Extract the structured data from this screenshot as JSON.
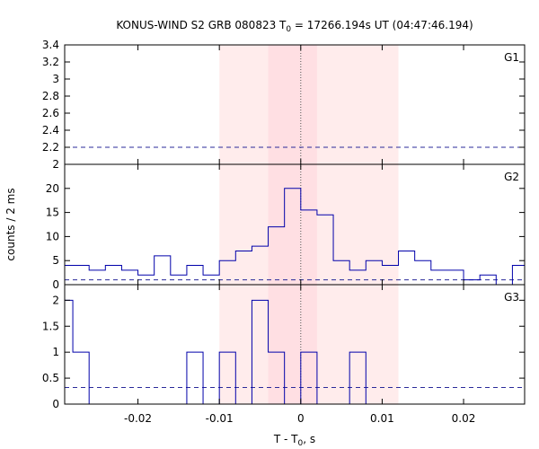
{
  "chart_data": {
    "type": "line",
    "title_main": "KONUS-WIND S2 GRB 080823 T",
    "title_sub": "0",
    "title_rest": " = 17266.194s UT (04:47:46.194)",
    "ylabel": "counts / 2 ms",
    "xlabel_main": "T - T",
    "xlabel_sub": "0",
    "xlabel_rest": ", s",
    "xlim": [
      -0.029,
      0.0275
    ],
    "x_ticks": [
      -0.02,
      -0.01,
      0,
      0.01,
      0.02
    ],
    "x_tick_labels": [
      "-0.02",
      "-0.01",
      "0",
      "0.01",
      "0.02"
    ],
    "bands": [
      {
        "x0": -0.01,
        "x1": 0.012,
        "color": "#ffecec"
      },
      {
        "x0": -0.004,
        "x1": 0.002,
        "color": "#ffdfe3"
      }
    ],
    "zero_line_color": "#555555",
    "line_color": "#0000aa",
    "background_color": "#2a2a9a",
    "panels": [
      {
        "name": "G1",
        "ylim": [
          2,
          3.4
        ],
        "y_ticks": [
          2,
          2.2,
          2.4,
          2.6,
          2.8,
          3,
          3.2,
          3.4
        ],
        "y_tick_labels": [
          "2",
          "2.2",
          "2.4",
          "2.6",
          "2.8",
          "3",
          "3.2",
          "3.4"
        ],
        "background": 2.2,
        "edges": [],
        "values": []
      },
      {
        "name": "G2",
        "ylim": [
          0,
          25
        ],
        "y_ticks": [
          0,
          5,
          10,
          15,
          20
        ],
        "y_tick_labels": [
          "0",
          "5",
          "10",
          "15",
          "20"
        ],
        "background": 1,
        "edges": [
          -0.029,
          -0.026,
          -0.024,
          -0.022,
          -0.02,
          -0.018,
          -0.016,
          -0.014,
          -0.012,
          -0.01,
          -0.008,
          -0.006,
          -0.004,
          -0.002,
          0.0,
          0.002,
          0.004,
          0.006,
          0.008,
          0.01,
          0.012,
          0.014,
          0.016,
          0.018,
          0.02,
          0.022,
          0.024,
          0.026,
          0.0275
        ],
        "values": [
          4,
          3,
          4,
          3,
          2,
          6,
          2,
          4,
          2,
          5,
          7,
          8,
          12,
          20,
          15.5,
          14.5,
          5,
          3,
          5,
          4,
          7,
          5,
          3,
          3,
          1,
          2,
          0,
          4
        ]
      },
      {
        "name": "G3",
        "ylim": [
          0,
          2.3
        ],
        "y_ticks": [
          0,
          0.5,
          1,
          1.5,
          2
        ],
        "y_tick_labels": [
          "0",
          "0.5",
          "1",
          "1.5",
          "2"
        ],
        "background": 0.32,
        "edges": [
          -0.029,
          -0.028,
          -0.026,
          -0.024,
          -0.022,
          -0.02,
          -0.018,
          -0.016,
          -0.014,
          -0.012,
          -0.01,
          -0.008,
          -0.006,
          -0.004,
          -0.002,
          0.0,
          0.002,
          0.004,
          0.006,
          0.008,
          0.01,
          0.012,
          0.014,
          0.016,
          0.018,
          0.02,
          0.022,
          0.024,
          0.026,
          0.0275
        ],
        "values": [
          2,
          1,
          0,
          0,
          0,
          0,
          0,
          0,
          1,
          0,
          1,
          0,
          2,
          1,
          0,
          1,
          0,
          0,
          1,
          0,
          0,
          0,
          0,
          0,
          0,
          0,
          0,
          0,
          0
        ]
      }
    ]
  }
}
